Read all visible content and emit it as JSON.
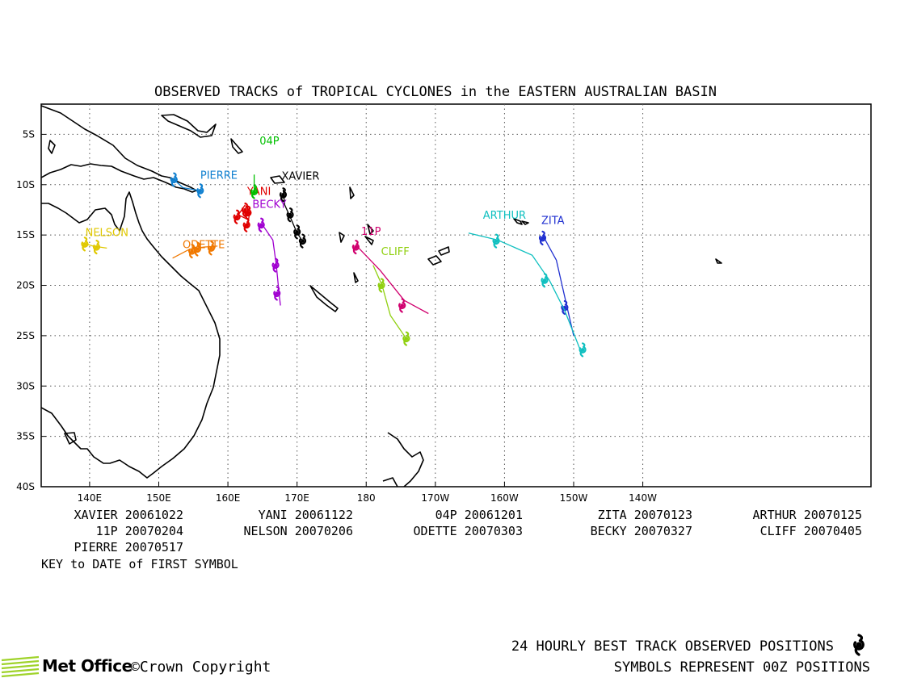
{
  "title": "OBSERVED TRACKS of TROPICAL CYCLONES in the EASTERN AUSTRALIAN BASIN",
  "map": {
    "lon_range": [
      133,
      253
    ],
    "lat_range": [
      -40,
      -2
    ],
    "grid": true,
    "lon_ticks": [
      {
        "value": 140,
        "label": "140E"
      },
      {
        "value": 150,
        "label": "150E"
      },
      {
        "value": 160,
        "label": "160E"
      },
      {
        "value": 170,
        "label": "170E"
      },
      {
        "value": 180,
        "label": "180"
      },
      {
        "value": 190,
        "label": "170W"
      },
      {
        "value": 200,
        "label": "160W"
      },
      {
        "value": 210,
        "label": "150W"
      },
      {
        "value": 220,
        "label": "140W"
      }
    ],
    "lat_ticks": [
      {
        "value": -5,
        "label": "5S"
      },
      {
        "value": -10,
        "label": "10S"
      },
      {
        "value": -15,
        "label": "15S"
      },
      {
        "value": -20,
        "label": "20S"
      },
      {
        "value": -25,
        "label": "25S"
      },
      {
        "value": -30,
        "label": "30S"
      },
      {
        "value": -35,
        "label": "35S"
      },
      {
        "value": -40,
        "label": "40S"
      }
    ]
  },
  "chart_data": {
    "type": "map-tracks",
    "tracks": [
      {
        "name": "XAVIER",
        "color": "#000000",
        "label_at": [
          170.5,
          -9.5
        ],
        "points": [
          [
            168,
            -10.5
          ],
          [
            168.2,
            -12
          ],
          [
            169,
            -13.2
          ],
          [
            170,
            -14.8
          ],
          [
            170.8,
            -15.6
          ]
        ],
        "symbols": [
          [
            168,
            -11
          ],
          [
            169,
            -13
          ],
          [
            170,
            -14.7
          ],
          [
            170.8,
            -15.6
          ]
        ]
      },
      {
        "name": "YANI",
        "color": "#e00000",
        "label_at": [
          164.5,
          -11
        ],
        "points": [
          [
            162.5,
            -12
          ],
          [
            161.5,
            -13
          ],
          [
            163,
            -13.5
          ],
          [
            162.8,
            -14.3
          ],
          [
            163.2,
            -12.5
          ]
        ],
        "symbols": [
          [
            162.5,
            -12.5
          ],
          [
            161.3,
            -13.2
          ],
          [
            162.7,
            -14
          ],
          [
            162.9,
            -12.8
          ]
        ]
      },
      {
        "name": "04P",
        "color": "#00c000",
        "label_at": [
          166,
          -6
        ],
        "points": [
          [
            163.8,
            -9
          ],
          [
            163.8,
            -10.7
          ]
        ],
        "symbols": [
          [
            163.8,
            -10.7
          ]
        ]
      },
      {
        "name": "ZITA",
        "color": "#2030d0",
        "label_at": [
          207,
          -13.9
        ],
        "points": [
          [
            205.5,
            -15
          ],
          [
            207.5,
            -17.5
          ],
          [
            209,
            -22
          ],
          [
            210,
            -25
          ]
        ],
        "symbols": [
          [
            205.5,
            -15.3
          ],
          [
            208.7,
            -22.2
          ]
        ]
      },
      {
        "name": "ARTHUR",
        "color": "#10c0c0",
        "label_at": [
          200,
          -13.4
        ],
        "points": [
          [
            194.8,
            -14.8
          ],
          [
            199,
            -15.5
          ],
          [
            204,
            -17
          ],
          [
            206.5,
            -19.5
          ],
          [
            208.7,
            -22.5
          ],
          [
            211,
            -26.5
          ]
        ],
        "symbols": [
          [
            198.8,
            -15.6
          ],
          [
            205.8,
            -19.5
          ],
          [
            211.3,
            -26.4
          ]
        ]
      },
      {
        "name": "11P",
        "color": "#d0006e",
        "label_at": [
          180.7,
          -15
        ],
        "points": [
          [
            178.5,
            -16
          ],
          [
            182,
            -18.5
          ],
          [
            185.5,
            -21.5
          ],
          [
            189,
            -22.8
          ]
        ],
        "symbols": [
          [
            178.5,
            -16.2
          ],
          [
            185.2,
            -22
          ]
        ]
      },
      {
        "name": "NELSON",
        "color": "#e0c800",
        "label_at": [
          142.5,
          -15.1
        ],
        "points": [
          [
            139,
            -15.8
          ],
          [
            140.5,
            -16.1
          ],
          [
            142.5,
            -16.3
          ]
        ],
        "symbols": [
          [
            139.3,
            -15.9
          ],
          [
            141,
            -16.2
          ]
        ]
      },
      {
        "name": "ODETTE",
        "color": "#f07800",
        "label_at": [
          156.5,
          -16.3
        ],
        "points": [
          [
            152,
            -17.3
          ],
          [
            154.5,
            -16.4
          ],
          [
            156.5,
            -16.2
          ],
          [
            158.5,
            -16.1
          ]
        ],
        "symbols": [
          [
            154.8,
            -16.6
          ],
          [
            155.6,
            -16.4
          ],
          [
            157.6,
            -16.3
          ]
        ]
      },
      {
        "name": "BECKY",
        "color": "#a000d0",
        "label_at": [
          166,
          -12.3
        ],
        "points": [
          [
            165,
            -14
          ],
          [
            166.5,
            -15.5
          ],
          [
            167,
            -18
          ],
          [
            167.4,
            -20.8
          ],
          [
            167.6,
            -22
          ]
        ],
        "symbols": [
          [
            164.8,
            -14
          ],
          [
            166.9,
            -18
          ],
          [
            167.1,
            -20.8
          ]
        ]
      },
      {
        "name": "CLIFF",
        "color": "#90d010",
        "label_at": [
          184.2,
          -17
        ],
        "points": [
          [
            181,
            -18
          ],
          [
            182.3,
            -20
          ],
          [
            183.5,
            -23
          ],
          [
            185.8,
            -25.3
          ]
        ],
        "symbols": [
          [
            182.2,
            -20
          ],
          [
            185.8,
            -25.3
          ]
        ]
      },
      {
        "name": "PIERRE",
        "color": "#1080d0",
        "label_at": [
          158.7,
          -9.4
        ],
        "points": [
          [
            152.2,
            -9.5
          ],
          [
            153.5,
            -10.3
          ],
          [
            156,
            -10.6
          ]
        ],
        "symbols": [
          [
            152.2,
            -9.5
          ],
          [
            156,
            -10.6
          ]
        ]
      }
    ]
  },
  "legend": {
    "rows": [
      [
        {
          "text": "XAVIER 20061022",
          "anchor_right": 227
        },
        {
          "text": "YANI 20061122",
          "anchor_right": 437
        },
        {
          "text": "04P 20061201",
          "anchor_right": 647
        },
        {
          "text": "ZITA 20070123",
          "anchor_right": 857
        },
        {
          "text": "ARTHUR 20070125",
          "anchor_right": 1067
        }
      ],
      [
        {
          "text": "11P 20070204",
          "anchor_right": 227
        },
        {
          "text": "NELSON 20070206",
          "anchor_right": 437
        },
        {
          "text": "ODETTE 20070303",
          "anchor_right": 647
        },
        {
          "text": "BECKY 20070327",
          "anchor_right": 857
        },
        {
          "text": "CLIFF 20070405",
          "anchor_right": 1067
        }
      ],
      [
        {
          "text": "PIERRE 20070517",
          "anchor_right": 227
        }
      ]
    ],
    "key_note": "KEY to DATE of FIRST SYMBOL"
  },
  "footer": {
    "logo_text": "Met Office",
    "copyright": "©Crown Copyright",
    "line1": "24 HOURLY BEST TRACK OBSERVED POSITIONS",
    "line2": "SYMBOLS REPRESENT 00Z POSITIONS",
    "symbol_icon": "cyclone-symbol-icon"
  }
}
